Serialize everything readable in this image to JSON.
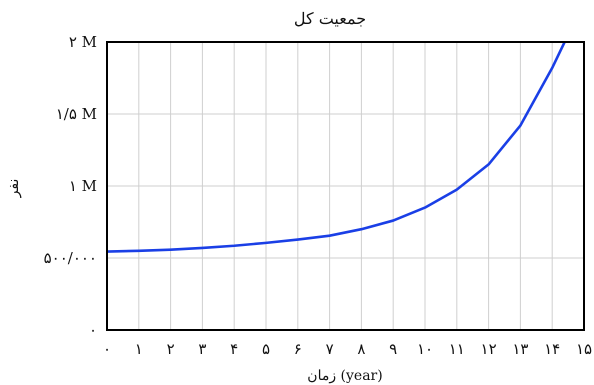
{
  "chart_data": {
    "type": "line",
    "title": "جمعیت کل",
    "xlabel": "زمان (year)",
    "ylabel": "نفر",
    "xlim": [
      0,
      15
    ],
    "ylim": [
      0,
      2000000
    ],
    "grid": true,
    "x_ticks": [
      0,
      1,
      2,
      3,
      4,
      5,
      6,
      7,
      8,
      9,
      10,
      11,
      12,
      13,
      14,
      15
    ],
    "x_tick_labels": [
      "۰",
      "۱",
      "۲",
      "۳",
      "۴",
      "۵",
      "۶",
      "۷",
      "۸",
      "۹",
      "۱۰",
      "۱۱",
      "۱۲",
      "۱۳",
      "۱۴",
      "۱۵"
    ],
    "y_ticks": [
      0,
      500000,
      1000000,
      1500000,
      2000000
    ],
    "y_tick_labels": [
      "۰",
      "۵۰۰/۰۰۰",
      "۱ M",
      "۱/۵ M",
      "۲ M"
    ],
    "series": [
      {
        "color": "#1a3fe6",
        "x": [
          0,
          1,
          2,
          3,
          4,
          5,
          6,
          7,
          8,
          9,
          10,
          11,
          12,
          13,
          14,
          14.5,
          15
        ],
        "y": [
          545000,
          550000,
          558000,
          570000,
          585000,
          605000,
          628000,
          655000,
          700000,
          760000,
          850000,
          975000,
          1150000,
          1420000,
          1820000,
          2050000,
          2300000
        ]
      }
    ]
  }
}
